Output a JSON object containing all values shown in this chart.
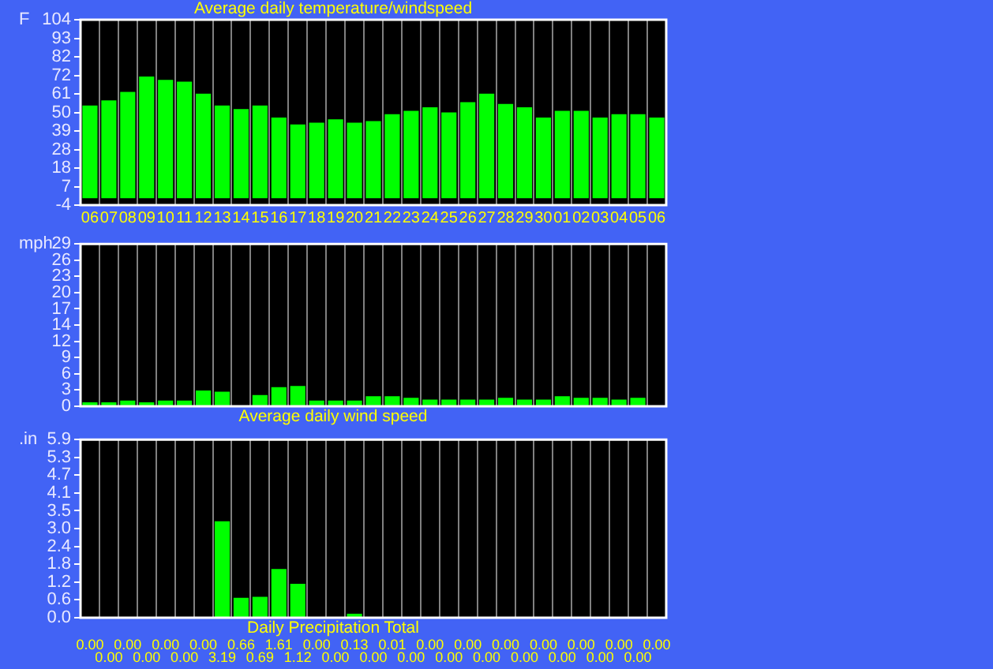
{
  "chart_data": [
    {
      "type": "bar",
      "title": "Average daily temperature/windspeed",
      "ylabel": "F",
      "categories": [
        "06",
        "07",
        "08",
        "09",
        "10",
        "11",
        "12",
        "13",
        "14",
        "15",
        "16",
        "17",
        "18",
        "19",
        "20",
        "21",
        "22",
        "23",
        "24",
        "25",
        "26",
        "27",
        "28",
        "29",
        "30",
        "01",
        "02",
        "03",
        "04",
        "05",
        "06"
      ],
      "values": [
        54,
        57,
        62,
        71,
        69,
        68,
        61,
        54,
        52,
        54,
        47,
        43,
        44,
        46,
        44,
        45,
        49,
        51,
        53,
        50,
        56,
        61,
        55,
        53,
        47,
        51,
        51,
        47,
        49,
        49,
        47
      ],
      "color": "#00ff00",
      "ylim": [
        -4,
        104
      ],
      "yticks": [
        -4,
        {
          "value": 6.8,
          "label": "7"
        },
        {
          "value": 17.6,
          "label": "18"
        },
        {
          "value": 28.4,
          "label": "28"
        },
        {
          "value": 39.2,
          "label": "39"
        },
        50,
        {
          "value": 60.8,
          "label": "61"
        },
        {
          "value": 71.6,
          "label": "72"
        },
        {
          "value": 82.4,
          "label": "82"
        },
        {
          "value": 93.2,
          "label": "93"
        },
        104
      ],
      "grid": "x"
    },
    {
      "type": "bar",
      "title": "Average daily wind speed",
      "ylabel": "mph",
      "categories": [
        "06",
        "07",
        "08",
        "09",
        "10",
        "11",
        "12",
        "13",
        "14",
        "15",
        "16",
        "17",
        "18",
        "19",
        "20",
        "21",
        "22",
        "23",
        "24",
        "25",
        "26",
        "27",
        "28",
        "29",
        "30",
        "01",
        "02",
        "03",
        "04",
        "05",
        "06"
      ],
      "values": [
        0.7,
        0.7,
        1.0,
        0.7,
        1.0,
        1.0,
        2.8,
        2.6,
        null,
        2.0,
        3.4,
        3.6,
        1.0,
        1.0,
        1.0,
        1.8,
        1.8,
        1.5,
        1.2,
        1.2,
        1.2,
        1.2,
        1.5,
        1.2,
        1.2,
        1.8,
        1.5,
        1.5,
        1.2,
        1.5,
        null
      ],
      "color": "#00ff00",
      "ylim": [
        0,
        29
      ],
      "yticks": [
        0,
        {
          "value": 2.9,
          "label": "3"
        },
        {
          "value": 5.8,
          "label": "6"
        },
        {
          "value": 8.7,
          "label": "9"
        },
        {
          "value": 11.6,
          "label": "12"
        },
        {
          "value": 14.5,
          "label": "14"
        },
        {
          "value": 17.4,
          "label": "17"
        },
        {
          "value": 20.3,
          "label": "20"
        },
        {
          "value": 23.2,
          "label": "23"
        },
        {
          "value": 26.1,
          "label": "26"
        },
        29
      ],
      "grid": "x",
      "tick_labels": "y"
    },
    {
      "type": "bar",
      "title": "Daily Precipitation Total",
      "ylabel": ".in",
      "categories": [
        "06",
        "07",
        "08",
        "09",
        "10",
        "11",
        "12",
        "13",
        "14",
        "15",
        "16",
        "17",
        "18",
        "19",
        "20",
        "21",
        "22",
        "23",
        "24",
        "25",
        "26",
        "27",
        "28",
        "29",
        "30",
        "01",
        "02",
        "03",
        "04",
        "05",
        "06"
      ],
      "values": [
        0,
        0,
        0,
        0,
        0,
        0,
        0,
        3.19,
        0.66,
        0.69,
        1.61,
        1.12,
        0,
        0,
        0.13,
        0,
        0.01,
        0,
        0,
        0,
        0,
        0,
        0,
        0,
        0,
        0,
        0,
        0,
        0,
        0,
        0
      ],
      "value_labels": [
        "0.00",
        "0.00",
        "0.00",
        "0.00",
        "0.00",
        "0.00",
        "0.00",
        "3.19",
        "0.66",
        "0.69",
        "1.61",
        "1.12",
        "0.00",
        "0.00",
        "0.13",
        "0.00",
        "0.01",
        "0.00",
        "0.00",
        "0.00",
        "0.00",
        "0.00",
        "0.00",
        "0.00",
        "0.00",
        "0.00",
        "0.00",
        "0.00",
        "0.00",
        "0.00",
        "0.00"
      ],
      "color": "#00ff00",
      "ylim": [
        0,
        5.9
      ],
      "yticks": [
        {
          "value": 0,
          "label": "0.0"
        },
        {
          "value": 0.59,
          "label": "0.6"
        },
        {
          "value": 1.18,
          "label": "1.2"
        },
        {
          "value": 1.77,
          "label": "1.8"
        },
        {
          "value": 2.36,
          "label": "2.4"
        },
        {
          "value": 2.95,
          "label": "3.0"
        },
        {
          "value": 3.54,
          "label": "3.5"
        },
        {
          "value": 4.13,
          "label": "4.1"
        },
        {
          "value": 4.72,
          "label": "4.7"
        },
        {
          "value": 5.31,
          "label": "5.3"
        },
        5.9
      ],
      "grid": "x",
      "tick_labels": "y"
    }
  ]
}
